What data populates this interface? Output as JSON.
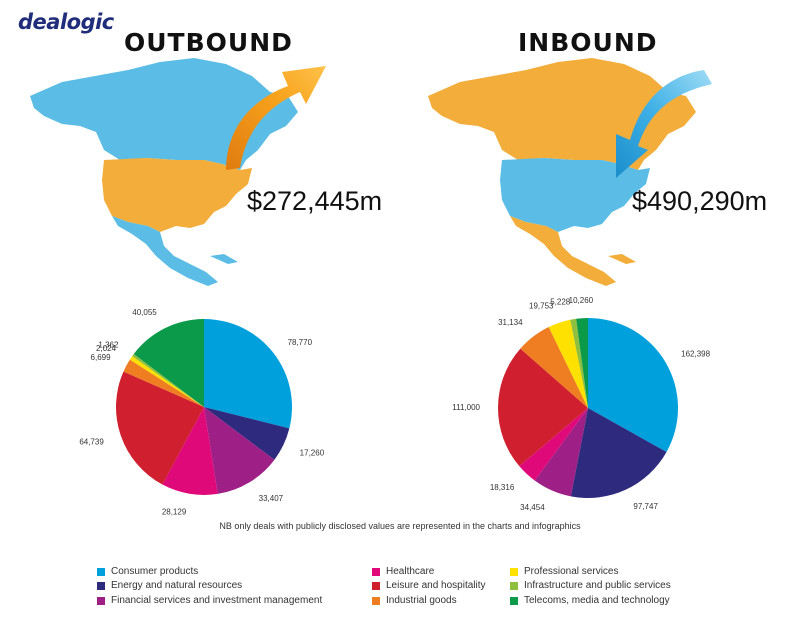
{
  "brand": "dealogic",
  "outbound": {
    "title": "OUTBOUND",
    "total": "$272,445m"
  },
  "inbound": {
    "title": "INBOUND",
    "total": "$490,290m"
  },
  "note": "NB only deals with publicly disclosed values are represented in the charts and infographics",
  "colors": {
    "consumer": "#00a0dc",
    "energy": "#2e2b7f",
    "financial": "#9e1f86",
    "healthcare": "#e0097a",
    "leisure": "#d01f2e",
    "industrial": "#ef7d22",
    "professional": "#ffe100",
    "infrastructure": "#8ebf3f",
    "telecoms": "#0b9a49",
    "map_blue": "#5bbde6",
    "map_orange": "#f2ad3a"
  },
  "legend": [
    {
      "key": "consumer",
      "label": "Consumer products"
    },
    {
      "key": "energy",
      "label": "Energy and natural resources"
    },
    {
      "key": "financial",
      "label": "Financial services and investment management"
    },
    {
      "key": "healthcare",
      "label": "Healthcare"
    },
    {
      "key": "leisure",
      "label": "Leisure and hospitality"
    },
    {
      "key": "industrial",
      "label": "Industrial goods"
    },
    {
      "key": "professional",
      "label": "Professional services"
    },
    {
      "key": "infrastructure",
      "label": "Infrastructure and public services"
    },
    {
      "key": "telecoms",
      "label": "Telecoms, media and technology"
    }
  ],
  "chart_data": [
    {
      "type": "pie",
      "title": "OUTBOUND",
      "slices": [
        {
          "key": "consumer",
          "value": 78770,
          "label": "78,770"
        },
        {
          "key": "energy",
          "value": 17260,
          "label": "17,260"
        },
        {
          "key": "financial",
          "value": 33407,
          "label": "33,407"
        },
        {
          "key": "healthcare",
          "value": 28129,
          "label": "28,129"
        },
        {
          "key": "leisure",
          "value": 64739,
          "label": "64,739"
        },
        {
          "key": "industrial",
          "value": 6699,
          "label": "6,699"
        },
        {
          "key": "professional",
          "value": 2024,
          "label": "2,024"
        },
        {
          "key": "infrastructure",
          "value": 1362,
          "label": "1,362"
        },
        {
          "key": "telecoms",
          "value": 40055,
          "label": "40,055"
        }
      ]
    },
    {
      "type": "pie",
      "title": "INBOUND",
      "slices": [
        {
          "key": "consumer",
          "value": 162398,
          "label": "162,398"
        },
        {
          "key": "energy",
          "value": 97747,
          "label": "97,747"
        },
        {
          "key": "financial",
          "value": 34454,
          "label": "34,454"
        },
        {
          "key": "healthcare",
          "value": 18316,
          "label": "18,316"
        },
        {
          "key": "leisure",
          "value": 111000,
          "label": "111,000"
        },
        {
          "key": "industrial",
          "value": 31134,
          "label": "31,134"
        },
        {
          "key": "professional",
          "value": 19753,
          "label": "19,753"
        },
        {
          "key": "infrastructure",
          "value": 5228,
          "label": "5,228"
        },
        {
          "key": "telecoms",
          "value": 10260,
          "label": "10,260"
        }
      ]
    }
  ]
}
